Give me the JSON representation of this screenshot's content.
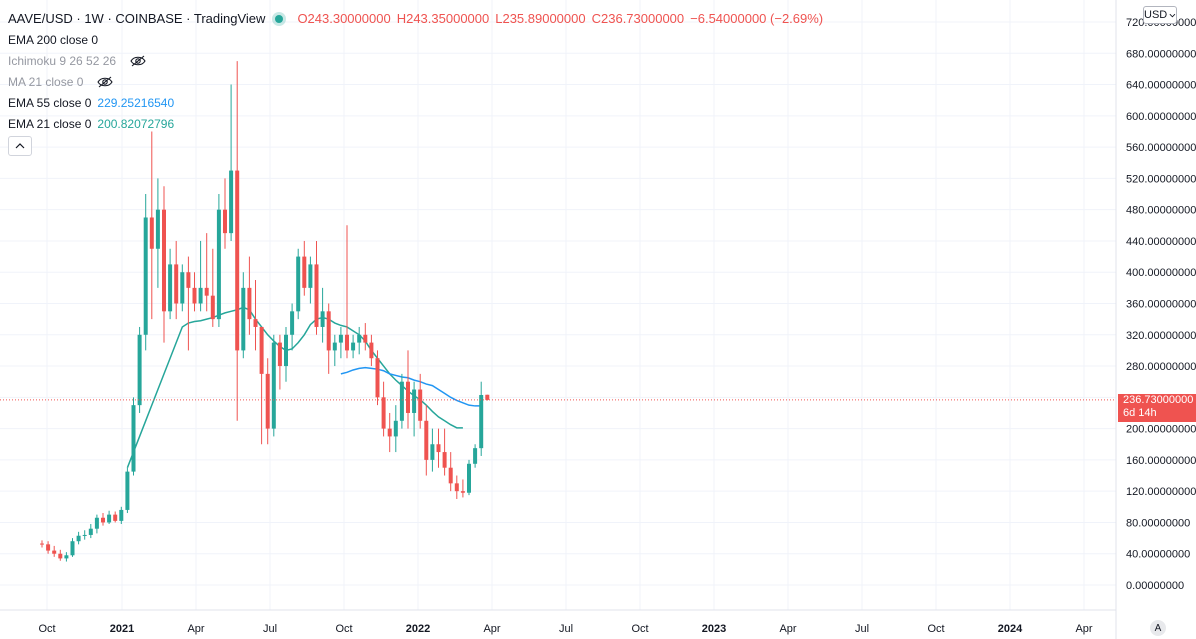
{
  "header": {
    "symbol": "AAVE/USD · 1W · COINBASE · TradingView",
    "open": "O243.30000000",
    "high": "H243.35000000",
    "low": "L235.89000000",
    "close": "C236.73000000",
    "change": "−6.54000000 (−2.69%)"
  },
  "indicators": [
    {
      "name": "EMA 200 close 0",
      "value": "",
      "visible": true,
      "color": "#131722"
    },
    {
      "name": "Ichimoku 9 26 52 26",
      "value": "",
      "visible": false,
      "color": "#9598a1",
      "icon": "eye-hidden-icon"
    },
    {
      "name": "MA 21 close 0",
      "value": "",
      "visible": false,
      "color": "#9598a1",
      "icon": "eye-hidden-icon"
    },
    {
      "name": "EMA 55 close 0",
      "value": "229.25216540",
      "visible": true,
      "color": "#2196f3"
    },
    {
      "name": "EMA 21 close 0",
      "value": "200.82072796",
      "visible": true,
      "color": "#26a69a"
    }
  ],
  "currency_button": "USD",
  "last_price": {
    "value": "236.73000000",
    "countdown": "6d 14h"
  },
  "auto_scale_label": "A",
  "colors": {
    "up": "#26a69a",
    "down": "#ef5350",
    "ema55": "#2196f3",
    "ema21": "#26a69a",
    "grid": "#f0f3fa"
  },
  "chart_data": {
    "type": "candlestick",
    "title": "AAVE/USD · 1W · COINBASE",
    "ylim": [
      -20,
      740
    ],
    "y_ticks": [
      "720.00000000",
      "680.00000000",
      "640.00000000",
      "600.00000000",
      "560.00000000",
      "520.00000000",
      "480.00000000",
      "440.00000000",
      "400.00000000",
      "360.00000000",
      "320.00000000",
      "280.00000000",
      "240.00000000",
      "200.00000000",
      "160.00000000",
      "120.00000000",
      "80.00000000",
      "40.00000000",
      "0.00000000"
    ],
    "x_ticks": [
      "Oct",
      "2021",
      "Apr",
      "Jul",
      "Oct",
      "2022",
      "Apr",
      "Jul",
      "Oct",
      "2023",
      "Apr",
      "Jul",
      "Oct",
      "2024",
      "Apr"
    ],
    "candles": [
      {
        "o": 53,
        "h": 57,
        "l": 48,
        "c": 52
      },
      {
        "o": 52,
        "h": 56,
        "l": 40,
        "c": 44
      },
      {
        "o": 44,
        "h": 50,
        "l": 36,
        "c": 40
      },
      {
        "o": 40,
        "h": 45,
        "l": 31,
        "c": 34
      },
      {
        "o": 34,
        "h": 42,
        "l": 30,
        "c": 38
      },
      {
        "o": 38,
        "h": 60,
        "l": 36,
        "c": 56
      },
      {
        "o": 56,
        "h": 68,
        "l": 52,
        "c": 63
      },
      {
        "o": 63,
        "h": 70,
        "l": 58,
        "c": 64
      },
      {
        "o": 64,
        "h": 78,
        "l": 60,
        "c": 72
      },
      {
        "o": 72,
        "h": 90,
        "l": 66,
        "c": 86
      },
      {
        "o": 86,
        "h": 92,
        "l": 76,
        "c": 80
      },
      {
        "o": 80,
        "h": 95,
        "l": 78,
        "c": 90
      },
      {
        "o": 90,
        "h": 94,
        "l": 80,
        "c": 82
      },
      {
        "o": 82,
        "h": 100,
        "l": 78,
        "c": 96
      },
      {
        "o": 96,
        "h": 150,
        "l": 92,
        "c": 145
      },
      {
        "o": 145,
        "h": 240,
        "l": 140,
        "c": 230
      },
      {
        "o": 230,
        "h": 330,
        "l": 220,
        "c": 320
      },
      {
        "o": 320,
        "h": 500,
        "l": 300,
        "c": 470
      },
      {
        "o": 470,
        "h": 580,
        "l": 340,
        "c": 430
      },
      {
        "o": 430,
        "h": 520,
        "l": 380,
        "c": 480
      },
      {
        "o": 480,
        "h": 510,
        "l": 310,
        "c": 350
      },
      {
        "o": 350,
        "h": 430,
        "l": 340,
        "c": 410
      },
      {
        "o": 410,
        "h": 440,
        "l": 340,
        "c": 360
      },
      {
        "o": 360,
        "h": 410,
        "l": 350,
        "c": 400
      },
      {
        "o": 400,
        "h": 420,
        "l": 300,
        "c": 380
      },
      {
        "o": 380,
        "h": 400,
        "l": 350,
        "c": 360
      },
      {
        "o": 360,
        "h": 440,
        "l": 350,
        "c": 380
      },
      {
        "o": 380,
        "h": 450,
        "l": 350,
        "c": 370
      },
      {
        "o": 370,
        "h": 430,
        "l": 330,
        "c": 340
      },
      {
        "o": 340,
        "h": 500,
        "l": 330,
        "c": 480
      },
      {
        "o": 480,
        "h": 520,
        "l": 430,
        "c": 450
      },
      {
        "o": 450,
        "h": 640,
        "l": 440,
        "c": 530
      },
      {
        "o": 530,
        "h": 670,
        "l": 210,
        "c": 300
      },
      {
        "o": 300,
        "h": 400,
        "l": 290,
        "c": 380
      },
      {
        "o": 380,
        "h": 420,
        "l": 320,
        "c": 340
      },
      {
        "o": 340,
        "h": 390,
        "l": 300,
        "c": 330
      },
      {
        "o": 330,
        "h": 330,
        "l": 180,
        "c": 270
      },
      {
        "o": 270,
        "h": 290,
        "l": 180,
        "c": 200
      },
      {
        "o": 200,
        "h": 320,
        "l": 190,
        "c": 310
      },
      {
        "o": 310,
        "h": 320,
        "l": 250,
        "c": 280
      },
      {
        "o": 280,
        "h": 330,
        "l": 260,
        "c": 320
      },
      {
        "o": 320,
        "h": 360,
        "l": 300,
        "c": 350
      },
      {
        "o": 350,
        "h": 430,
        "l": 340,
        "c": 420
      },
      {
        "o": 420,
        "h": 440,
        "l": 370,
        "c": 380
      },
      {
        "o": 380,
        "h": 420,
        "l": 360,
        "c": 410
      },
      {
        "o": 410,
        "h": 440,
        "l": 320,
        "c": 330
      },
      {
        "o": 330,
        "h": 380,
        "l": 310,
        "c": 350
      },
      {
        "o": 350,
        "h": 360,
        "l": 270,
        "c": 300
      },
      {
        "o": 300,
        "h": 320,
        "l": 280,
        "c": 310
      },
      {
        "o": 310,
        "h": 330,
        "l": 290,
        "c": 320
      },
      {
        "o": 320,
        "h": 460,
        "l": 290,
        "c": 300
      },
      {
        "o": 300,
        "h": 320,
        "l": 290,
        "c": 310
      },
      {
        "o": 310,
        "h": 330,
        "l": 295,
        "c": 320
      },
      {
        "o": 320,
        "h": 335,
        "l": 300,
        "c": 310
      },
      {
        "o": 310,
        "h": 320,
        "l": 280,
        "c": 290
      },
      {
        "o": 290,
        "h": 300,
        "l": 230,
        "c": 240
      },
      {
        "o": 240,
        "h": 260,
        "l": 190,
        "c": 200
      },
      {
        "o": 200,
        "h": 220,
        "l": 170,
        "c": 190
      },
      {
        "o": 190,
        "h": 230,
        "l": 170,
        "c": 210
      },
      {
        "o": 210,
        "h": 270,
        "l": 200,
        "c": 260
      },
      {
        "o": 260,
        "h": 300,
        "l": 200,
        "c": 220
      },
      {
        "o": 220,
        "h": 260,
        "l": 190,
        "c": 250
      },
      {
        "o": 250,
        "h": 270,
        "l": 200,
        "c": 210
      },
      {
        "o": 210,
        "h": 230,
        "l": 140,
        "c": 160
      },
      {
        "o": 160,
        "h": 200,
        "l": 145,
        "c": 180
      },
      {
        "o": 180,
        "h": 200,
        "l": 150,
        "c": 170
      },
      {
        "o": 170,
        "h": 200,
        "l": 140,
        "c": 150
      },
      {
        "o": 150,
        "h": 170,
        "l": 120,
        "c": 130
      },
      {
        "o": 130,
        "h": 140,
        "l": 110,
        "c": 120
      },
      {
        "o": 120,
        "h": 135,
        "l": 112,
        "c": 118
      },
      {
        "o": 118,
        "h": 160,
        "l": 115,
        "c": 155
      },
      {
        "o": 155,
        "h": 180,
        "l": 150,
        "c": 175
      },
      {
        "o": 175,
        "h": 260,
        "l": 165,
        "c": 243
      },
      {
        "o": 243.3,
        "h": 243.35,
        "l": 235.89,
        "c": 236.73
      }
    ],
    "ema21": [
      150,
      170,
      190,
      210,
      230,
      250,
      270,
      290,
      310,
      330,
      335,
      337,
      338,
      340,
      342,
      345,
      348,
      350,
      352,
      355,
      352,
      340,
      330,
      320,
      312,
      305,
      300,
      302,
      310,
      320,
      333,
      340,
      342,
      340,
      335,
      332,
      330,
      325,
      320,
      312,
      300,
      290,
      280,
      270,
      262,
      255,
      248,
      242,
      237,
      230,
      222,
      215,
      210,
      205,
      201,
      201
    ],
    "ema21_start": 14,
    "ema55": [
      270,
      272,
      275,
      277,
      278,
      277,
      276,
      274,
      270,
      268,
      266,
      265,
      262,
      260,
      257,
      255,
      250,
      245,
      240,
      236,
      233,
      230,
      229,
      229
    ],
    "ema55_start": 49
  }
}
